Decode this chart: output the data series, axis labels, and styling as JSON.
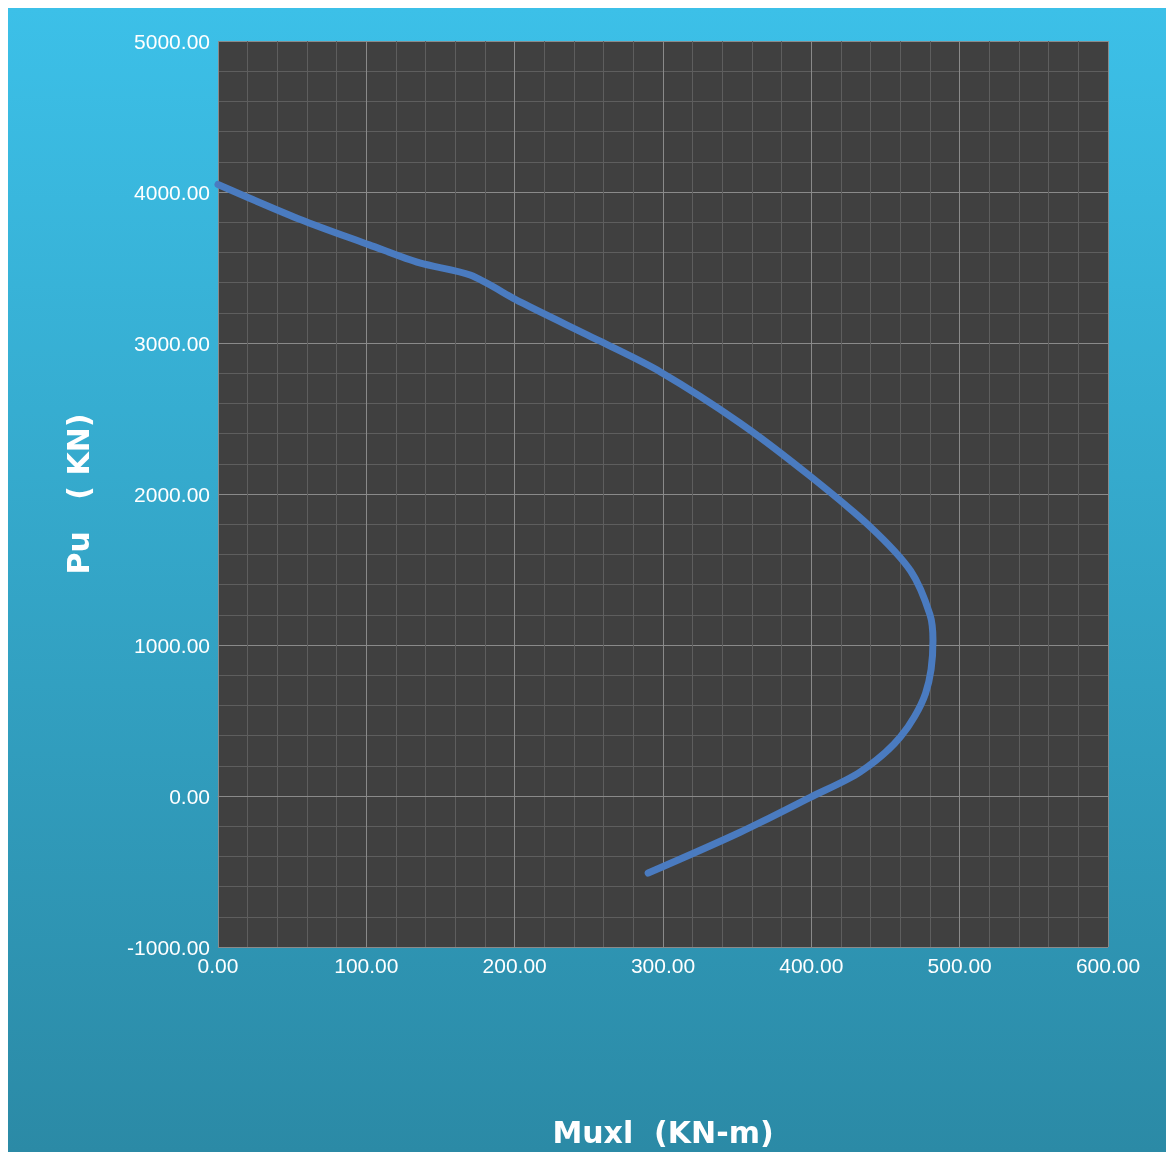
{
  "chart_data": {
    "type": "line",
    "xlabel": "Muxl  (KN-m)",
    "ylabel": "Pu   ( KN)",
    "x": [
      0,
      55,
      102,
      136,
      170,
      204,
      258,
      298,
      352,
      399,
      440,
      467,
      480,
      482,
      477,
      460,
      433,
      399,
      352,
      290
    ],
    "series": [
      {
        "color": "#4a7bc0",
        "values": [
          4050,
          3820,
          3650,
          3530,
          3450,
          3270,
          3010,
          2810,
          2470,
          2120,
          1780,
          1490,
          1200,
          1030,
          680,
          390,
          160,
          -10,
          -240,
          -510
        ]
      }
    ],
    "xlim": [
      0,
      600
    ],
    "xticks": [
      {
        "value": 0,
        "label": "0.00"
      },
      {
        "value": 100,
        "label": "100.00"
      },
      {
        "value": 200,
        "label": "200.00"
      },
      {
        "value": 300,
        "label": "300.00"
      },
      {
        "value": 400,
        "label": "400.00"
      },
      {
        "value": 500,
        "label": "500.00"
      },
      {
        "value": 600,
        "label": "600.00"
      }
    ],
    "ylim": [
      -1000,
      5000
    ],
    "yticks": [
      {
        "value": -1000,
        "label": "-1000.00"
      },
      {
        "value": 0,
        "label": "0.00"
      },
      {
        "value": 1000,
        "label": "1000.00"
      },
      {
        "value": 2000,
        "label": "2000.00"
      },
      {
        "value": 3000,
        "label": "3000.00"
      },
      {
        "value": 4000,
        "label": "4000.00"
      },
      {
        "value": 5000,
        "label": "5000.00"
      }
    ],
    "grid": true,
    "marker": "none",
    "line_style": "solid"
  }
}
